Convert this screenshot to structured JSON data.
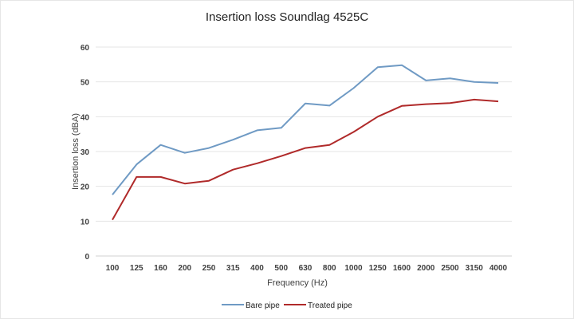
{
  "chart_data": {
    "type": "line",
    "title": "Insertion loss Soundlag 4525C",
    "xlabel": "Frequency (Hz)",
    "ylabel": "Insertion loss (dBA)",
    "ylim": [
      0,
      60
    ],
    "yticks": [
      0,
      10,
      20,
      30,
      40,
      50,
      60
    ],
    "grid": true,
    "legend_position": "bottom",
    "categories": [
      "100",
      "125",
      "160",
      "200",
      "250",
      "315",
      "400",
      "500",
      "630",
      "800",
      "1000",
      "1250",
      "1600",
      "2000",
      "2500",
      "3150",
      "4000"
    ],
    "series": [
      {
        "name": "Bare pipe",
        "color": "#6f9ac4",
        "values": [
          17.6,
          26.3,
          31.9,
          29.6,
          31.0,
          33.4,
          36.1,
          36.8,
          43.8,
          43.2,
          48.2,
          54.2,
          54.8,
          50.4,
          51.0,
          50.0,
          49.7
        ]
      },
      {
        "name": "Treated pipe",
        "color": "#b02a2a",
        "values": [
          10.4,
          22.7,
          22.7,
          20.8,
          21.6,
          24.8,
          26.6,
          28.7,
          31.0,
          31.9,
          35.6,
          40.0,
          43.1,
          43.6,
          43.9,
          44.9,
          44.4
        ]
      }
    ]
  }
}
